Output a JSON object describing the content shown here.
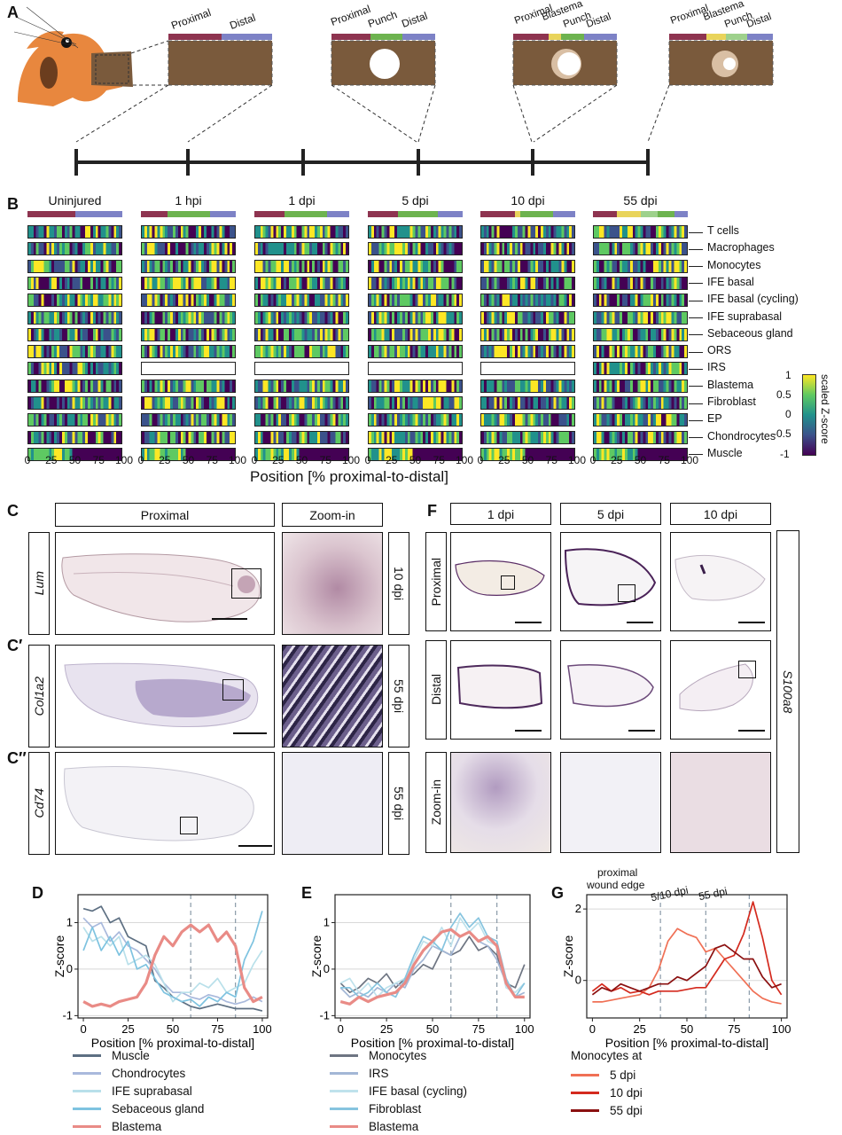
{
  "panel_letters": {
    "A": "A",
    "B": "B",
    "C": "C",
    "C1": "C′",
    "C2": "C′′",
    "D": "D",
    "E": "E",
    "F": "F",
    "G": "G"
  },
  "panel_a": {
    "stage1": [
      "Proximal",
      "Distal"
    ],
    "stage2": [
      "Proximal",
      "Punch",
      "Distal"
    ],
    "stage3": [
      "Proximal",
      "Blastema",
      "Punch",
      "Distal"
    ],
    "stage4": [
      "Proximal",
      "Blastema",
      "Punch",
      "Distal"
    ],
    "colors": {
      "proximal": "#8e3450",
      "distal": "#7d82c6",
      "punch": "#6db34f",
      "blastema": "#e9d45b",
      "punch_late": "#9ed18c",
      "tissue": "#7a5a3c"
    }
  },
  "panel_b": {
    "timepoints": [
      "Uninjured",
      "1 hpi",
      "1 dpi",
      "5 dpi",
      "10 dpi",
      "55 dpi"
    ],
    "cell_types": [
      "T cells",
      "Macrophages",
      "Monocytes",
      "IFE basal",
      "IFE basal (cycling)",
      "IFE suprabasal",
      "Sebaceous gland",
      "ORS",
      "IRS",
      "Blastema",
      "Fibroblast",
      "EP",
      "Chondrocytes",
      "Muscle"
    ],
    "x_ticks": [
      "0",
      "25",
      "50",
      "75",
      "100"
    ],
    "x_ticks_short": [
      "0",
      "25",
      "50",
      "75",
      "100"
    ],
    "xlabel": "Position [% proximal-to-distal]",
    "colorbar": {
      "label": "scaled Z-score",
      "ticks": [
        "1",
        "0.5",
        "0",
        "-0.5",
        "-1"
      ]
    },
    "colormap": [
      "#440154",
      "#3b528b",
      "#21918c",
      "#5ec962",
      "#fde725"
    ]
  },
  "panel_c": {
    "header_main": "Proximal",
    "header_zoom": "Zoom-in",
    "rows": [
      {
        "gene": "Lum",
        "time": "10 dpi"
      },
      {
        "gene": "Col1a2",
        "time": "55 dpi"
      },
      {
        "gene": "Cd74",
        "time": "55 dpi"
      }
    ]
  },
  "panel_f": {
    "columns": [
      "1 dpi",
      "5 dpi",
      "10 dpi"
    ],
    "rows": [
      "Proximal",
      "Distal",
      "Zoom-in"
    ],
    "gene": "S100a8"
  },
  "chart_data": [
    {
      "panel": "D",
      "type": "line",
      "xlabel": "Position [% proximal-to-distal]",
      "ylabel": "Z-score",
      "xlim": [
        -3,
        103
      ],
      "ylim": [
        -1.05,
        1.6
      ],
      "x_ticks": [
        0,
        25,
        50,
        75,
        100
      ],
      "y_ticks": [
        -1,
        0,
        1
      ],
      "vlines": [
        60,
        85
      ],
      "x": [
        0,
        5,
        10,
        15,
        20,
        25,
        30,
        35,
        40,
        45,
        50,
        55,
        60,
        65,
        70,
        75,
        80,
        85,
        90,
        95,
        100
      ],
      "series": [
        {
          "name": "Muscle",
          "color": "#5d6f82",
          "values": [
            1.3,
            1.25,
            1.35,
            1.0,
            1.1,
            0.7,
            0.6,
            0.5,
            -0.25,
            -0.4,
            -0.6,
            -0.7,
            -0.8,
            -0.85,
            -0.8,
            -0.75,
            -0.8,
            -0.85,
            -0.85,
            -0.85,
            -0.9
          ]
        },
        {
          "name": "Chondrocytes",
          "color": "#a9b9dc",
          "values": [
            1.1,
            0.9,
            1.0,
            0.6,
            0.8,
            0.5,
            0.4,
            0.2,
            0.0,
            -0.3,
            -0.5,
            -0.5,
            -0.6,
            -0.65,
            -0.55,
            -0.6,
            -0.7,
            -0.75,
            -0.7,
            -0.6,
            -0.7
          ]
        },
        {
          "name": "IFE suprabasal",
          "color": "#b9e0ea",
          "values": [
            0.9,
            0.6,
            0.7,
            0.5,
            0.7,
            0.1,
            0.2,
            0.3,
            0.1,
            -0.3,
            -0.7,
            -0.5,
            -0.5,
            -0.3,
            -0.4,
            -0.2,
            -0.5,
            -0.4,
            -0.3,
            0.1,
            0.4
          ]
        },
        {
          "name": "Sebaceous gland",
          "color": "#7ec3e0",
          "values": [
            0.4,
            0.9,
            0.4,
            0.7,
            0.3,
            0.6,
            0.0,
            0.1,
            -0.2,
            -0.5,
            -0.6,
            -0.7,
            -0.65,
            -0.8,
            -0.6,
            -0.7,
            -0.5,
            -0.6,
            0.2,
            0.6,
            1.25
          ]
        },
        {
          "name": "Blastema",
          "color": "#e98b86",
          "values": [
            -0.7,
            -0.8,
            -0.75,
            -0.8,
            -0.7,
            -0.65,
            -0.6,
            -0.3,
            0.3,
            0.7,
            0.5,
            0.8,
            0.95,
            0.8,
            0.95,
            0.6,
            0.8,
            0.5,
            -0.4,
            -0.7,
            -0.6
          ]
        }
      ]
    },
    {
      "panel": "E",
      "type": "line",
      "xlabel": "Position [% proximal-to-distal]",
      "ylabel": "Z-score",
      "xlim": [
        -3,
        103
      ],
      "ylim": [
        -1.05,
        1.6
      ],
      "x_ticks": [
        0,
        25,
        50,
        75,
        100
      ],
      "y_ticks": [
        -1,
        0,
        1
      ],
      "vlines": [
        60,
        85
      ],
      "x": [
        0,
        5,
        10,
        15,
        20,
        25,
        30,
        35,
        40,
        45,
        50,
        55,
        60,
        65,
        70,
        75,
        80,
        85,
        90,
        95,
        100
      ],
      "series": [
        {
          "name": "Monocytes",
          "color": "#6e7582",
          "values": [
            -0.3,
            -0.5,
            -0.4,
            -0.2,
            -0.3,
            -0.1,
            -0.4,
            -0.2,
            -0.1,
            0.1,
            0.0,
            0.4,
            0.3,
            0.4,
            0.7,
            0.4,
            0.5,
            0.3,
            -0.3,
            -0.4,
            0.1
          ]
        },
        {
          "name": "IRS",
          "color": "#a3b7d6",
          "values": [
            -0.4,
            -0.6,
            -0.5,
            -0.6,
            -0.4,
            -0.5,
            -0.3,
            -0.4,
            0.0,
            0.2,
            0.5,
            0.4,
            0.3,
            0.7,
            0.8,
            0.6,
            0.5,
            0.2,
            -0.3,
            -0.6,
            -0.5
          ]
        },
        {
          "name": "IFE basal (cycling)",
          "color": "#bfe2ec",
          "values": [
            -0.3,
            -0.2,
            -0.5,
            -0.3,
            -0.6,
            -0.4,
            -0.3,
            -0.2,
            0.2,
            0.6,
            0.5,
            0.9,
            0.5,
            1.1,
            0.8,
            1.0,
            0.6,
            0.5,
            -0.4,
            -0.5,
            -0.3
          ]
        },
        {
          "name": "Fibroblast",
          "color": "#86c4df",
          "values": [
            -0.4,
            -0.4,
            -0.6,
            -0.5,
            -0.3,
            -0.5,
            -0.6,
            -0.2,
            0.3,
            0.7,
            0.6,
            0.4,
            0.9,
            1.2,
            0.9,
            1.1,
            0.7,
            0.6,
            -0.2,
            -0.6,
            -0.3
          ]
        },
        {
          "name": "Blastema",
          "color": "#e98b86",
          "values": [
            -0.7,
            -0.75,
            -0.6,
            -0.7,
            -0.6,
            -0.55,
            -0.5,
            -0.3,
            0.1,
            0.4,
            0.6,
            0.8,
            0.85,
            0.7,
            0.8,
            0.6,
            0.7,
            0.5,
            -0.3,
            -0.6,
            -0.6
          ]
        }
      ]
    },
    {
      "panel": "G",
      "type": "line",
      "xlabel": "Position [% proximal-to-distal]",
      "ylabel": "Z-score",
      "xlim": [
        -3,
        103
      ],
      "ylim": [
        -1.05,
        2.4
      ],
      "x_ticks": [
        0,
        25,
        50,
        75,
        100
      ],
      "y_ticks": [
        0,
        2
      ],
      "vlines": [
        36,
        60,
        83
      ],
      "annotations": [
        "proximal",
        "wound edge",
        "5/10 dpi",
        "55 dpi"
      ],
      "legend_title": "Monocytes at",
      "x": [
        0,
        5,
        10,
        15,
        20,
        25,
        30,
        35,
        40,
        45,
        50,
        55,
        60,
        65,
        70,
        75,
        80,
        85,
        90,
        95,
        100
      ],
      "series": [
        {
          "name": "5 dpi",
          "color": "#f07055",
          "values": [
            -0.6,
            -0.6,
            -0.55,
            -0.5,
            -0.45,
            -0.4,
            -0.2,
            0.3,
            1.1,
            1.45,
            1.3,
            1.2,
            0.8,
            0.9,
            0.6,
            0.3,
            0.0,
            -0.3,
            -0.5,
            -0.6,
            -0.65
          ]
        },
        {
          "name": "10 dpi",
          "color": "#d42a1e",
          "values": [
            -0.3,
            -0.1,
            -0.3,
            -0.2,
            -0.35,
            -0.3,
            -0.4,
            -0.3,
            -0.3,
            -0.3,
            -0.25,
            -0.2,
            -0.2,
            0.2,
            0.6,
            0.7,
            1.3,
            2.2,
            1.2,
            0.0,
            -0.4
          ]
        },
        {
          "name": "55 dpi",
          "color": "#8b1010",
          "values": [
            -0.4,
            -0.2,
            -0.3,
            -0.1,
            -0.2,
            -0.3,
            -0.2,
            -0.1,
            -0.1,
            0.1,
            0.0,
            0.2,
            0.4,
            0.9,
            1.0,
            0.8,
            0.6,
            0.6,
            0.1,
            -0.2,
            -0.1
          ]
        }
      ]
    }
  ]
}
